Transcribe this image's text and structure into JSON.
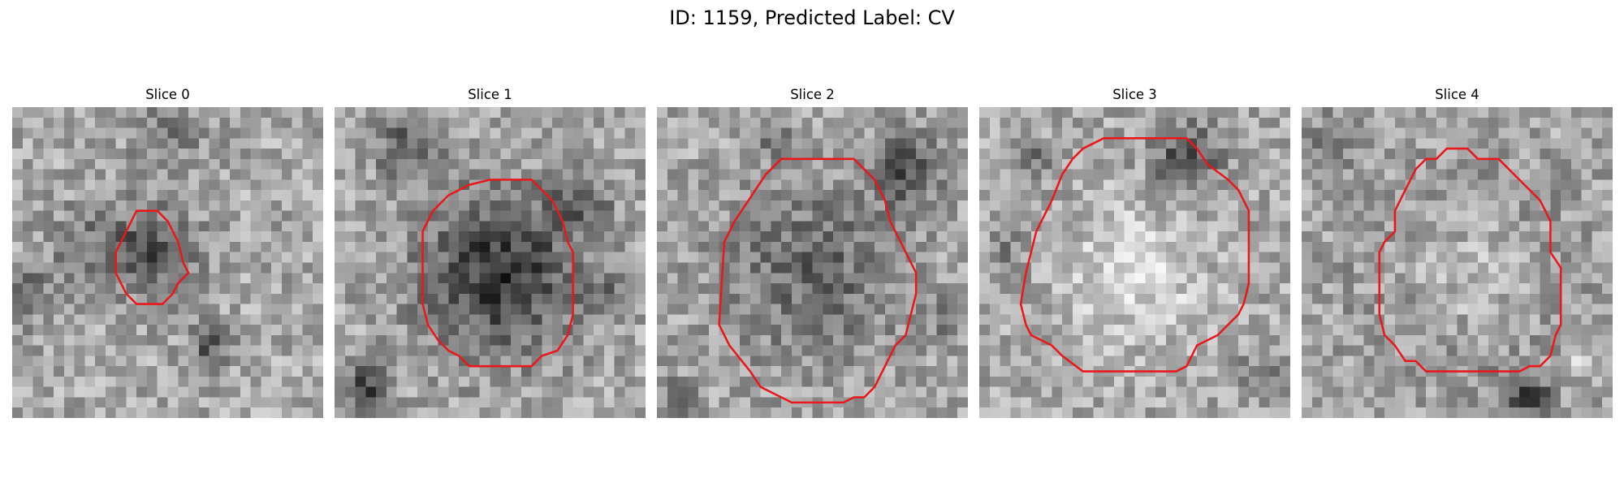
{
  "figure": {
    "title": "ID: 1159, Predicted Label: CV"
  },
  "panels": [
    {
      "title": "Slice 0",
      "contour": [
        [
          12,
          10
        ],
        [
          14,
          10
        ],
        [
          15,
          11
        ],
        [
          16,
          13
        ],
        [
          16.5,
          15
        ],
        [
          17,
          16
        ],
        [
          16,
          17
        ],
        [
          15.5,
          18
        ],
        [
          14.5,
          19
        ],
        [
          12,
          19
        ],
        [
          11,
          18
        ],
        [
          10,
          16
        ],
        [
          10,
          14
        ],
        [
          11,
          12
        ]
      ],
      "blobs": [
        [
          13.5,
          14,
          4.5,
          0.35
        ],
        [
          7,
          13,
          4,
          0.15
        ],
        [
          1,
          18,
          3,
          0.25
        ],
        [
          19,
          23,
          2,
          0.3
        ],
        [
          15,
          3,
          4,
          0.15
        ]
      ]
    },
    {
      "title": "Slice 1",
      "contour": [
        [
          15,
          7
        ],
        [
          19,
          7
        ],
        [
          21,
          9
        ],
        [
          22,
          11
        ],
        [
          22.5,
          13
        ],
        [
          23,
          14
        ],
        [
          23,
          20
        ],
        [
          22.5,
          22
        ],
        [
          21.5,
          23.5
        ],
        [
          20,
          24
        ],
        [
          19,
          25
        ],
        [
          13,
          25
        ],
        [
          12,
          24
        ],
        [
          11,
          23.5
        ],
        [
          10,
          22.5
        ],
        [
          9,
          21
        ],
        [
          8.5,
          19
        ],
        [
          8.5,
          12
        ],
        [
          9.5,
          10
        ],
        [
          11,
          8.5
        ],
        [
          13,
          7.5
        ]
      ],
      "blobs": [
        [
          16,
          16,
          8,
          0.45
        ],
        [
          7,
          4,
          3,
          0.3
        ],
        [
          3,
          27,
          2.5,
          0.4
        ],
        [
          24,
          9,
          3,
          0.2
        ],
        [
          26,
          18,
          2,
          0.2
        ]
      ]
    },
    {
      "title": "Slice 2",
      "contour": [
        [
          12,
          5
        ],
        [
          19,
          5
        ],
        [
          21,
          7
        ],
        [
          22,
          9
        ],
        [
          22.5,
          11
        ],
        [
          23,
          12
        ],
        [
          24,
          14
        ],
        [
          25,
          16
        ],
        [
          25,
          18
        ],
        [
          24.5,
          20
        ],
        [
          24,
          22
        ],
        [
          23,
          23
        ],
        [
          22,
          25
        ],
        [
          21,
          27
        ],
        [
          20,
          28
        ],
        [
          19,
          28
        ],
        [
          18,
          28.5
        ],
        [
          13,
          28.5
        ],
        [
          11,
          27.5
        ],
        [
          10,
          27
        ],
        [
          9,
          25.5
        ],
        [
          7,
          23
        ],
        [
          6,
          21
        ],
        [
          6.5,
          13
        ],
        [
          7.5,
          11
        ],
        [
          9.5,
          8
        ],
        [
          10.5,
          6.5
        ]
      ],
      "blobs": [
        [
          15,
          16,
          9,
          0.25
        ],
        [
          24,
          6,
          3.5,
          0.35
        ],
        [
          2,
          28,
          2,
          0.2
        ],
        [
          28,
          20,
          2,
          0.2
        ],
        [
          11,
          3,
          2,
          0.15
        ]
      ]
    },
    {
      "title": "Slice 3",
      "contour": [
        [
          10,
          4
        ],
        [
          12,
          3
        ],
        [
          20,
          3
        ],
        [
          21,
          4
        ],
        [
          22,
          5.5
        ],
        [
          24,
          7
        ],
        [
          25,
          8
        ],
        [
          26,
          10
        ],
        [
          26,
          17
        ],
        [
          25.5,
          19
        ],
        [
          25,
          20
        ],
        [
          24,
          21
        ],
        [
          23,
          22
        ],
        [
          21,
          23
        ],
        [
          20,
          25
        ],
        [
          19,
          25.5
        ],
        [
          10,
          25.5
        ],
        [
          8,
          24
        ],
        [
          7,
          23
        ],
        [
          5,
          22
        ],
        [
          4.5,
          21
        ],
        [
          4,
          19
        ],
        [
          4.5,
          16
        ],
        [
          5,
          14
        ],
        [
          5.5,
          12
        ],
        [
          6.5,
          10
        ],
        [
          7,
          9
        ],
        [
          8,
          6.5
        ],
        [
          9,
          5
        ]
      ],
      "blobs": [
        [
          15,
          16,
          7,
          -0.2
        ],
        [
          20,
          5,
          3.5,
          0.35
        ],
        [
          6,
          5,
          2,
          0.2
        ],
        [
          27,
          26,
          2,
          0.2
        ],
        [
          3,
          14,
          2,
          0.15
        ]
      ]
    },
    {
      "title": "Slice 4",
      "contour": [
        [
          12,
          5
        ],
        [
          13,
          5
        ],
        [
          14,
          4
        ],
        [
          16,
          4
        ],
        [
          17,
          5
        ],
        [
          19,
          5
        ],
        [
          21,
          7
        ],
        [
          23,
          9
        ],
        [
          24,
          11
        ],
        [
          24,
          14
        ],
        [
          25,
          15.5
        ],
        [
          25,
          21
        ],
        [
          24.5,
          22
        ],
        [
          24,
          24
        ],
        [
          23,
          25
        ],
        [
          22,
          25
        ],
        [
          21,
          25.5
        ],
        [
          12,
          25.5
        ],
        [
          11,
          24.5
        ],
        [
          10,
          24.5
        ],
        [
          9,
          23
        ],
        [
          8,
          22
        ],
        [
          7.5,
          20
        ],
        [
          7.5,
          14
        ],
        [
          8,
          13
        ],
        [
          9,
          12
        ],
        [
          9,
          10
        ],
        [
          10,
          8
        ],
        [
          11,
          6
        ]
      ],
      "blobs": [
        [
          16,
          16,
          7,
          -0.25
        ],
        [
          16,
          16,
          11,
          0.18
        ],
        [
          22,
          28,
          2.5,
          0.35
        ],
        [
          3,
          3,
          3,
          0.15
        ],
        [
          27,
          24,
          2,
          -0.15
        ]
      ]
    }
  ]
}
